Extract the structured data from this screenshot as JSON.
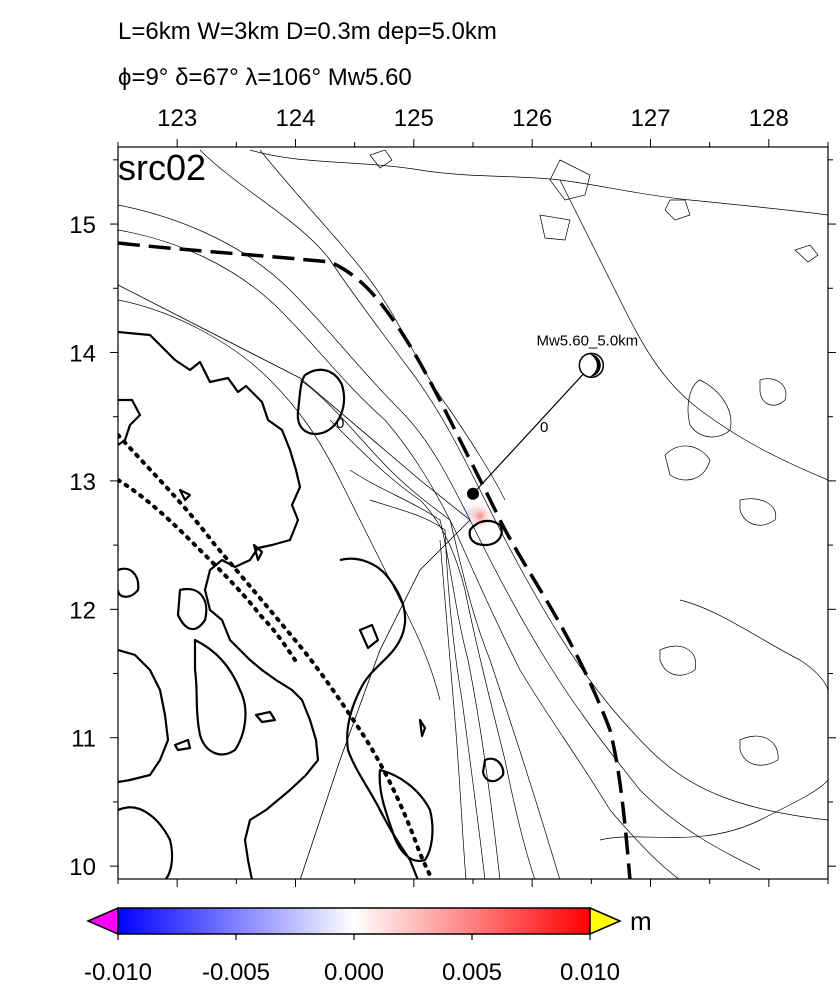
{
  "header": {
    "line1": "L=6km W=3km D=0.3m dep=5.0km",
    "line2": "ϕ=9° δ=67° λ=106° Mw5.60"
  },
  "panel_label": "src02",
  "map": {
    "lon_range": [
      122.5,
      128.5
    ],
    "lat_range": [
      9.9,
      15.6
    ],
    "lon_ticks": [
      "123",
      "124",
      "125",
      "126",
      "127",
      "128"
    ],
    "lat_ticks": [
      "10",
      "11",
      "12",
      "13",
      "14",
      "15"
    ],
    "epicenter": {
      "lon": 125.5,
      "lat": 12.9
    },
    "mechanism": {
      "lon": 126.5,
      "lat": 13.9,
      "label": "Mw5.60_5.0km"
    },
    "contour_label": "0",
    "contour_label_near": "0"
  },
  "colorbar": {
    "unit": "m",
    "tick_labels": [
      "-0.010",
      "-0.005",
      "0.000",
      "0.005",
      "0.010"
    ],
    "colors": {
      "min": "#0000ff",
      "mid": "#ffffff",
      "max": "#ff0000",
      "under": "#ff00ff",
      "over": "#ffff00"
    }
  }
}
